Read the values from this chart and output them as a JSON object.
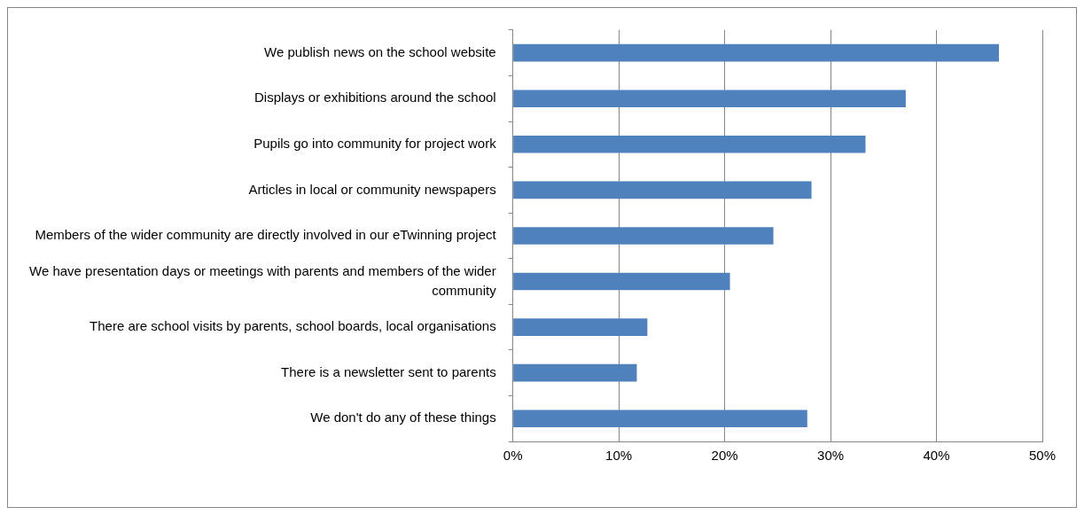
{
  "chart_data": {
    "type": "bar",
    "orientation": "horizontal",
    "categories": [
      "We publish news on the school website",
      "Displays or exhibitions around the school",
      "Pupils go into community for project work",
      "Articles in local or community newspapers",
      "Members of the wider community are directly involved in our eTwinning project",
      "We have presentation days or meetings with parents and members of the wider community",
      "There are school visits by parents, school boards, local organisations",
      "There is a newsletter sent to parents",
      "We don't do any of these things"
    ],
    "values": [
      45.9,
      37.1,
      33.3,
      28.2,
      24.6,
      20.5,
      12.7,
      11.7,
      27.8
    ],
    "color": "#4f81bd",
    "xlim": [
      0,
      50
    ],
    "xticks": [
      {
        "value": 0,
        "label": "0%"
      },
      {
        "value": 10,
        "label": "10%"
      },
      {
        "value": 20,
        "label": "20%"
      },
      {
        "value": 30,
        "label": "30%"
      },
      {
        "value": 40,
        "label": "40%"
      },
      {
        "value": 50,
        "label": "50%"
      }
    ],
    "grid": "x",
    "legend": false
  }
}
